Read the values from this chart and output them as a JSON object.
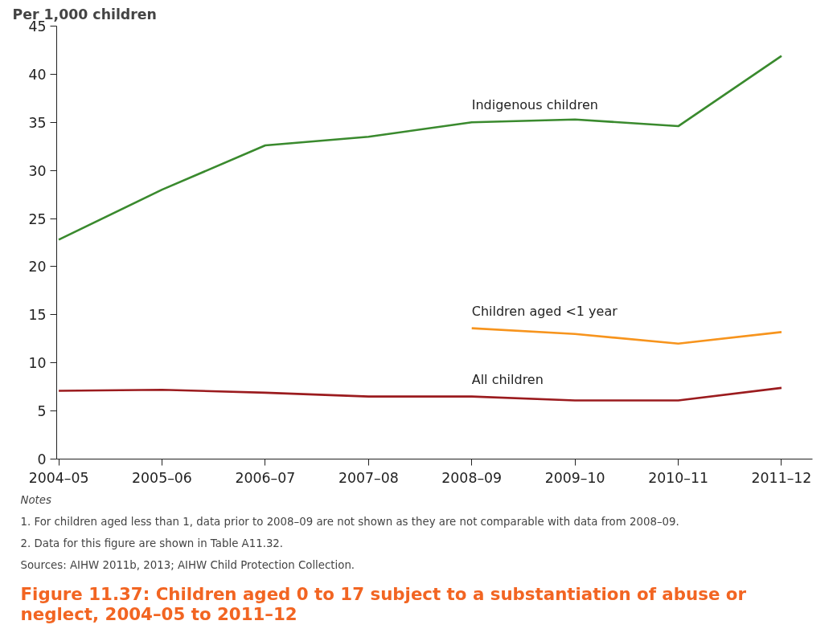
{
  "chart_data": {
    "type": "line",
    "title": "Figure 11.37: Children aged 0 to 17 subject to a substantiation of abuse or neglect, 2004–05 to 2011–12",
    "ylabel": "Per 1,000 children",
    "categories": [
      "2004–05",
      "2005–06",
      "2006–07",
      "2007–08",
      "2008–09",
      "2009–10",
      "2010–11",
      "2011–12"
    ],
    "series": [
      {
        "name": "Indigenous children",
        "color": "#3a8a2e",
        "values": [
          22.8,
          28.0,
          32.6,
          33.5,
          35.0,
          35.3,
          34.6,
          41.9
        ]
      },
      {
        "name": "Children aged <1 year",
        "color": "#f7941d",
        "values": [
          null,
          null,
          null,
          null,
          13.6,
          13.0,
          12.0,
          13.2
        ]
      },
      {
        "name": "All children",
        "color": "#9b1b1e",
        "values": [
          7.1,
          7.2,
          6.9,
          6.5,
          6.5,
          6.1,
          6.1,
          7.4
        ]
      }
    ],
    "ylim": [
      0,
      45
    ],
    "yticks": [
      0,
      5,
      10,
      15,
      20,
      25,
      30,
      35,
      40,
      45
    ],
    "grid": false,
    "legend": false,
    "marker": "none",
    "line_style": "solid",
    "annotations": [
      "Notes",
      "1.   For children aged less than 1, data prior to 2008–09 are not shown as they are not comparable with data from 2008–09.",
      "2.   Data for this figure are shown in Table A11.32.",
      "Sources: AIHW 2011b, 2013; AIHW Child Protection Collection."
    ]
  }
}
